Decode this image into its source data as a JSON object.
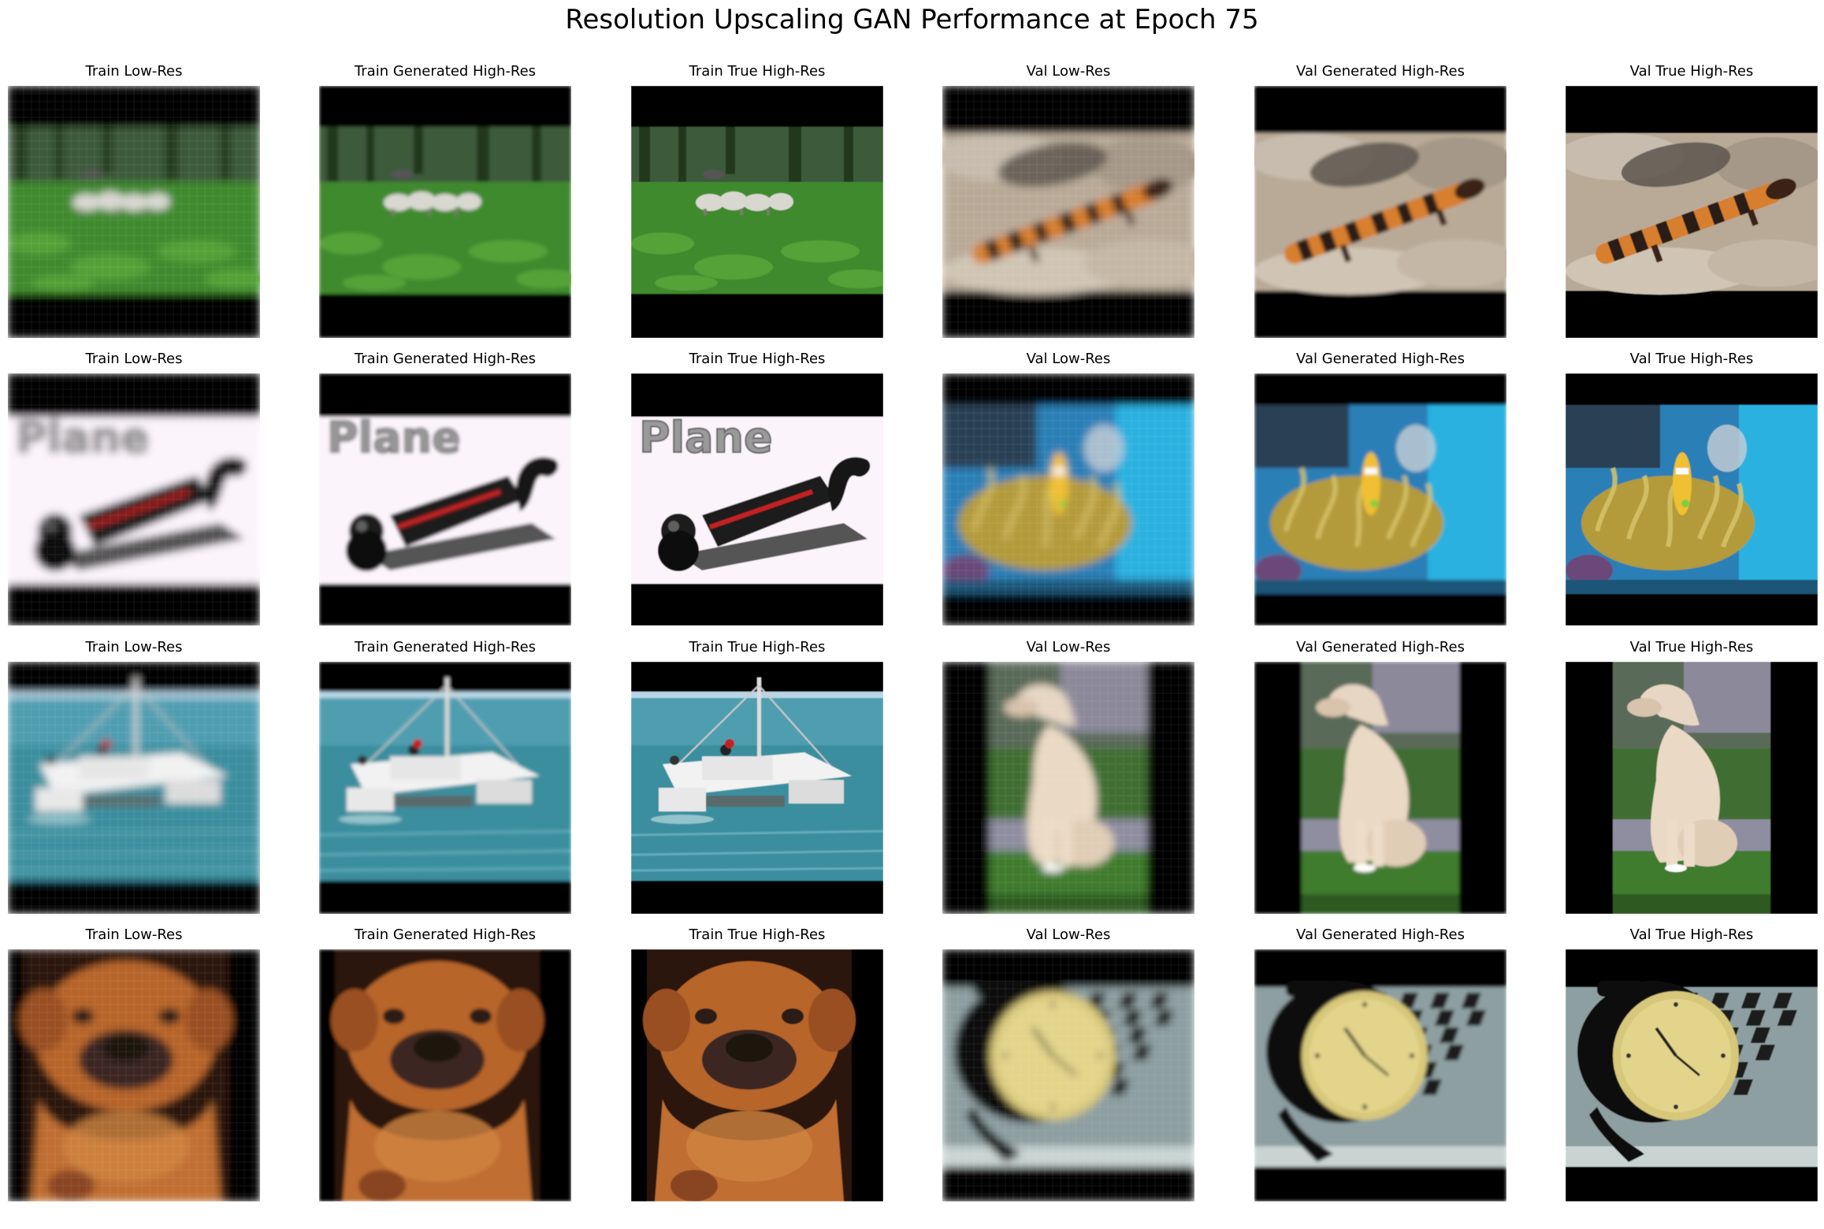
{
  "figure": {
    "title": "Resolution Upscaling GAN Performance at Epoch 75"
  },
  "rows": [
    {
      "panels": [
        {
          "title": "Train Low-Res",
          "subject": "grass-field-sheep",
          "quality": "low"
        },
        {
          "title": "Train Generated High-Res",
          "subject": "grass-field-sheep",
          "quality": "generated"
        },
        {
          "title": "Train True High-Res",
          "subject": "grass-field-sheep",
          "quality": "true"
        },
        {
          "title": "Val Low-Res",
          "subject": "gila-monster-on-rock",
          "quality": "low"
        },
        {
          "title": "Val Generated High-Res",
          "subject": "gila-monster-on-rock",
          "quality": "generated"
        },
        {
          "title": "Val True High-Res",
          "subject": "gila-monster-on-rock",
          "quality": "true"
        }
      ]
    },
    {
      "panels": [
        {
          "title": "Train Low-Res",
          "subject": "hand-plane-tool",
          "quality": "low",
          "label": "Plane"
        },
        {
          "title": "Train Generated High-Res",
          "subject": "hand-plane-tool",
          "quality": "generated",
          "label": "Plane"
        },
        {
          "title": "Train True High-Res",
          "subject": "hand-plane-tool",
          "quality": "true",
          "label": "Plane"
        },
        {
          "title": "Val Low-Res",
          "subject": "clownfish-anemone",
          "quality": "low"
        },
        {
          "title": "Val Generated High-Res",
          "subject": "clownfish-anemone",
          "quality": "generated"
        },
        {
          "title": "Val True High-Res",
          "subject": "clownfish-anemone",
          "quality": "true"
        }
      ]
    },
    {
      "panels": [
        {
          "title": "Train Low-Res",
          "subject": "catamaran-boat",
          "quality": "low"
        },
        {
          "title": "Train Generated High-Res",
          "subject": "catamaran-boat",
          "quality": "generated"
        },
        {
          "title": "Train True High-Res",
          "subject": "catamaran-boat",
          "quality": "true"
        },
        {
          "title": "Val Low-Res",
          "subject": "sitting-dog",
          "quality": "low"
        },
        {
          "title": "Val Generated High-Res",
          "subject": "sitting-dog",
          "quality": "generated"
        },
        {
          "title": "Val True High-Res",
          "subject": "sitting-dog",
          "quality": "true"
        }
      ]
    },
    {
      "panels": [
        {
          "title": "Train Low-Res",
          "subject": "small-brown-dog-face",
          "quality": "low"
        },
        {
          "title": "Train Generated High-Res",
          "subject": "small-brown-dog-face",
          "quality": "generated"
        },
        {
          "title": "Train True High-Res",
          "subject": "small-brown-dog-face",
          "quality": "true"
        },
        {
          "title": "Val Low-Res",
          "subject": "clock-on-checkerboard",
          "quality": "low"
        },
        {
          "title": "Val Generated High-Res",
          "subject": "clock-on-checkerboard",
          "quality": "generated"
        },
        {
          "title": "Val True High-Res",
          "subject": "clock-on-checkerboard",
          "quality": "true"
        }
      ]
    }
  ]
}
